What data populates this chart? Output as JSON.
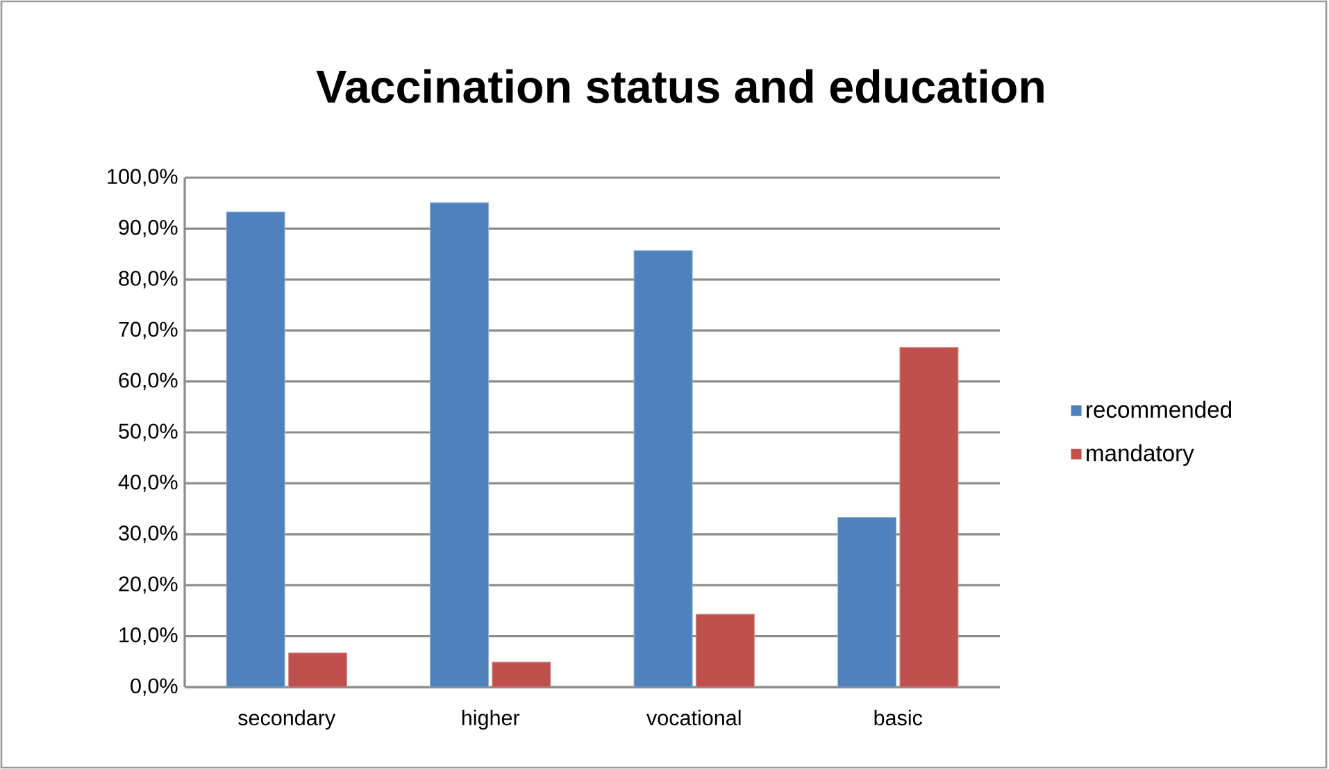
{
  "chart_data": {
    "type": "bar",
    "title": "Vaccination status and education",
    "categories": [
      "secondary",
      "higher",
      "vocational",
      "basic"
    ],
    "series": [
      {
        "name": "recommended",
        "color": "#4f81bd",
        "values": [
          93.3,
          95.1,
          85.7,
          33.3
        ]
      },
      {
        "name": "mandatory",
        "color": "#c0504d",
        "values": [
          6.7,
          4.9,
          14.3,
          66.7
        ]
      }
    ],
    "ylim": [
      0,
      100
    ],
    "yticks": [
      {
        "value": 0,
        "label": "0,0%"
      },
      {
        "value": 10,
        "label": "10,0%"
      },
      {
        "value": 20,
        "label": "20,0%"
      },
      {
        "value": 30,
        "label": "30,0%"
      },
      {
        "value": 40,
        "label": "40,0%"
      },
      {
        "value": 50,
        "label": "50,0%"
      },
      {
        "value": 60,
        "label": "60,0%"
      },
      {
        "value": 70,
        "label": "70,0%"
      },
      {
        "value": 80,
        "label": "80,0%"
      },
      {
        "value": 90,
        "label": "90,0%"
      },
      {
        "value": 100,
        "label": "100,0%"
      }
    ],
    "grid": "y",
    "legend": "right"
  }
}
